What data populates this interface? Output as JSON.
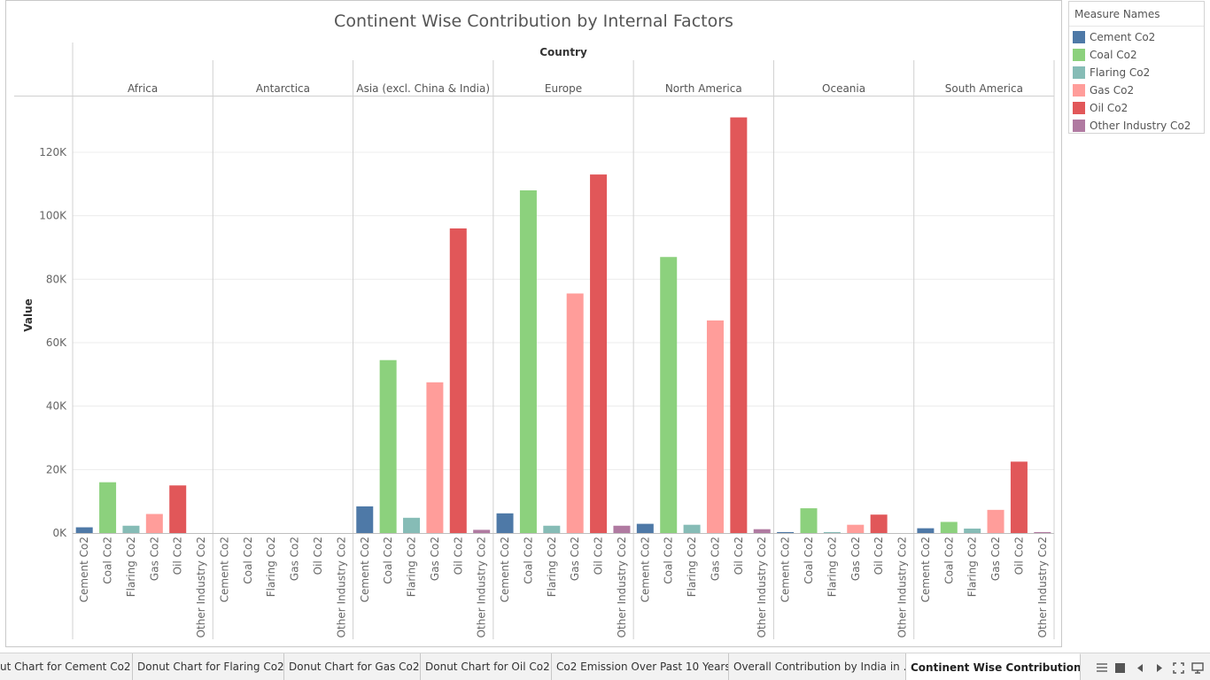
{
  "chart_data": {
    "type": "bar",
    "title": "Continent Wise Contribution by Internal Factors",
    "column_header": "Country",
    "ylabel": "Value",
    "ylim": [
      0,
      132000
    ],
    "yticks": [
      0,
      20000,
      40000,
      60000,
      80000,
      100000,
      120000
    ],
    "ytick_labels": [
      "0K",
      "20K",
      "40K",
      "60K",
      "80K",
      "100K",
      "120K"
    ],
    "groups": [
      "Africa",
      "Antarctica",
      "Asia (excl. China & India)",
      "Europe",
      "North America",
      "Oceania",
      "South America"
    ],
    "measures": [
      "Cement Co2",
      "Coal Co2",
      "Flaring Co2",
      "Gas Co2",
      "Oil Co2",
      "Other Industry Co2"
    ],
    "colors": [
      "#4e79a7",
      "#8cd17d",
      "#86bcb6",
      "#ff9d9a",
      "#e15759",
      "#b07aa1"
    ],
    "series": [
      {
        "name": "Cement Co2",
        "values": [
          1800,
          0,
          8400,
          6200,
          2900,
          300,
          1500
        ]
      },
      {
        "name": "Coal Co2",
        "values": [
          16000,
          0,
          54500,
          108000,
          87000,
          7800,
          3500
        ]
      },
      {
        "name": "Flaring Co2",
        "values": [
          2300,
          0,
          4800,
          2300,
          2600,
          300,
          1400
        ]
      },
      {
        "name": "Gas Co2",
        "values": [
          6000,
          0,
          47500,
          75500,
          67000,
          2600,
          7300
        ]
      },
      {
        "name": "Oil Co2",
        "values": [
          15000,
          0,
          96000,
          113000,
          131000,
          5800,
          22500
        ]
      },
      {
        "name": "Other Industry Co2",
        "values": [
          0,
          0,
          1000,
          2300,
          1200,
          0,
          300
        ]
      }
    ],
    "gridlines": true,
    "legend_position": "right"
  },
  "legend": {
    "title": "Measure Names",
    "items": [
      "Cement Co2",
      "Coal Co2",
      "Flaring Co2",
      "Gas Co2",
      "Oil Co2",
      "Other Industry Co2"
    ]
  },
  "tabs": [
    {
      "label": "ut Chart for Cement Co2",
      "active": false
    },
    {
      "label": "Donut Chart for Flaring Co2",
      "active": false
    },
    {
      "label": "Donut Chart for Gas Co2",
      "active": false
    },
    {
      "label": "Donut Chart for Oil Co2",
      "active": false
    },
    {
      "label": "Co2 Emission Over Past 10 Years",
      "active": false
    },
    {
      "label": "Overall Contribution by India in ...",
      "active": false
    },
    {
      "label": "Continent Wise Contribution b...",
      "active": true
    }
  ],
  "nav_icons": [
    "show-sheets-icon",
    "filmstrip-icon",
    "prev-sheet-icon",
    "next-sheet-icon",
    "fullscreen-icon",
    "presentation-icon"
  ]
}
